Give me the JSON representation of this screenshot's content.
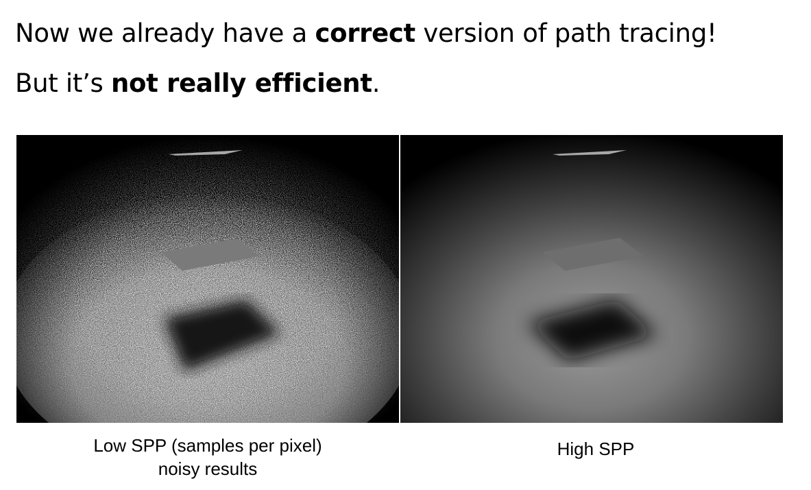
{
  "title": {
    "line1": {
      "before": "Now we already have a ",
      "bold": "correct",
      "after": " version of path tracing!"
    },
    "line2": {
      "before": "But it’s ",
      "bold": "not really efficient",
      "after": "."
    }
  },
  "figures": {
    "left": {
      "caption_line1": "Low SPP (samples per pixel)",
      "caption_line2": "noisy results"
    },
    "right": {
      "caption": "High SPP"
    }
  },
  "colors": {
    "background": "#ffffff",
    "render_background": "#000000"
  }
}
